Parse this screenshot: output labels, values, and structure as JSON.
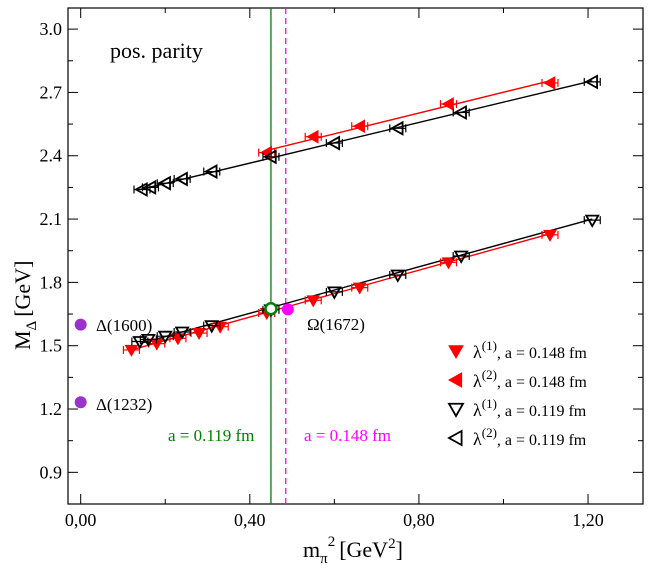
{
  "chart_data": {
    "type": "scatter",
    "panel_label": "pos. parity",
    "xlabel": "m",
    "xlabel_sub": "π",
    "xlabel_sup": "2",
    "xlabel_units": "[GeV",
    "xlabel_units_sup": "2",
    "xlabel_units_end": "]",
    "ylabel": "M",
    "ylabel_sub": "Δ",
    "ylabel_units": "[GeV]",
    "xlim": [
      -0.03,
      1.33
    ],
    "ylim": [
      0.75,
      3.1
    ],
    "xticks": [
      {
        "value": 0.0,
        "label": "0,00"
      },
      {
        "value": 0.4,
        "label": "0,40"
      },
      {
        "value": 0.8,
        "label": "0,80"
      },
      {
        "value": 1.2,
        "label": "1,20"
      }
    ],
    "yticks": [
      {
        "value": 0.9,
        "label": "0.9"
      },
      {
        "value": 1.2,
        "label": "1.2"
      },
      {
        "value": 1.5,
        "label": "1.5"
      },
      {
        "value": 1.8,
        "label": "1.8"
      },
      {
        "value": 2.1,
        "label": "2.1"
      },
      {
        "value": 2.4,
        "label": "2.4"
      },
      {
        "value": 2.7,
        "label": "2.7"
      },
      {
        "value": 3.0,
        "label": "3.0"
      }
    ],
    "series": [
      {
        "name": "λ(1), a = 0.148 fm",
        "legend_symbol": "λ",
        "legend_sup": "(1)",
        "legend_rest": ", a = 0.148 fm",
        "marker": "tri-down-filled",
        "color": "#ff0000",
        "points": [
          [
            0.12,
            1.48
          ],
          [
            0.18,
            1.51
          ],
          [
            0.23,
            1.535
          ],
          [
            0.28,
            1.56
          ],
          [
            0.33,
            1.59
          ],
          [
            0.44,
            1.655
          ],
          [
            0.55,
            1.715
          ],
          [
            0.66,
            1.775
          ],
          [
            0.87,
            1.895
          ],
          [
            1.11,
            2.025
          ]
        ],
        "fit": [
          [
            0.12,
            1.48
          ],
          [
            1.11,
            2.03
          ]
        ],
        "fit_color": "#ff0000"
      },
      {
        "name": "λ(2), a = 0.148 fm",
        "legend_symbol": "λ",
        "legend_sup": "(2)",
        "legend_rest": ", a = 0.148 fm",
        "marker": "tri-left-filled",
        "color": "#ff0000",
        "points": [
          [
            0.44,
            2.415
          ],
          [
            0.55,
            2.49
          ],
          [
            0.66,
            2.54
          ],
          [
            0.87,
            2.645
          ],
          [
            1.11,
            2.745
          ]
        ],
        "fit": [
          [
            0.44,
            2.425
          ],
          [
            1.11,
            2.755
          ]
        ],
        "fit_color": "#ff0000"
      },
      {
        "name": "λ(1), a = 0.119 fm",
        "legend_symbol": "λ",
        "legend_sup": "(1)",
        "legend_rest": ", a = 0.119 fm",
        "marker": "tri-down-open",
        "color": "#000000",
        "points": [
          [
            0.14,
            1.52
          ],
          [
            0.16,
            1.53
          ],
          [
            0.2,
            1.545
          ],
          [
            0.24,
            1.565
          ],
          [
            0.31,
            1.595
          ],
          [
            0.45,
            1.67
          ],
          [
            0.6,
            1.755
          ],
          [
            0.75,
            1.835
          ],
          [
            0.9,
            1.925
          ],
          [
            1.21,
            2.095
          ]
        ],
        "fit": [
          [
            0.14,
            1.51
          ],
          [
            1.21,
            2.1
          ]
        ],
        "fit_color": "#000000"
      },
      {
        "name": "λ(2), a = 0.119 fm",
        "legend_symbol": "λ",
        "legend_sup": "(2)",
        "legend_rest": ", a = 0.119 fm",
        "marker": "tri-left-open",
        "color": "#000000",
        "points": [
          [
            0.145,
            2.24
          ],
          [
            0.165,
            2.25
          ],
          [
            0.2,
            2.27
          ],
          [
            0.24,
            2.29
          ],
          [
            0.31,
            2.325
          ],
          [
            0.45,
            2.395
          ],
          [
            0.6,
            2.46
          ],
          [
            0.75,
            2.53
          ],
          [
            0.9,
            2.605
          ],
          [
            1.21,
            2.75
          ]
        ],
        "fit": [
          [
            0.14,
            2.24
          ],
          [
            1.21,
            2.755
          ]
        ],
        "fit_color": "#000000"
      }
    ],
    "physical_point": {
      "x": 0.45,
      "y": 1.675,
      "color": "#008000"
    },
    "reference_lines": [
      {
        "x": 0.45,
        "label": "a = 0.119 fm",
        "color": "#008000",
        "dashed": false
      },
      {
        "x": 0.485,
        "label": "a = 0.148 fm",
        "color": "#ff00ff",
        "dashed": true
      }
    ],
    "experimental_points": [
      {
        "label": "Δ(1600)",
        "x": 0.0,
        "y": 1.6,
        "color": "#9933cc"
      },
      {
        "label": "Δ(1232)",
        "x": 0.0,
        "y": 1.232,
        "color": "#9933cc"
      },
      {
        "label": "Ω(1672)",
        "x": 0.49,
        "y": 1.672,
        "color": "#ff00ff"
      }
    ]
  }
}
